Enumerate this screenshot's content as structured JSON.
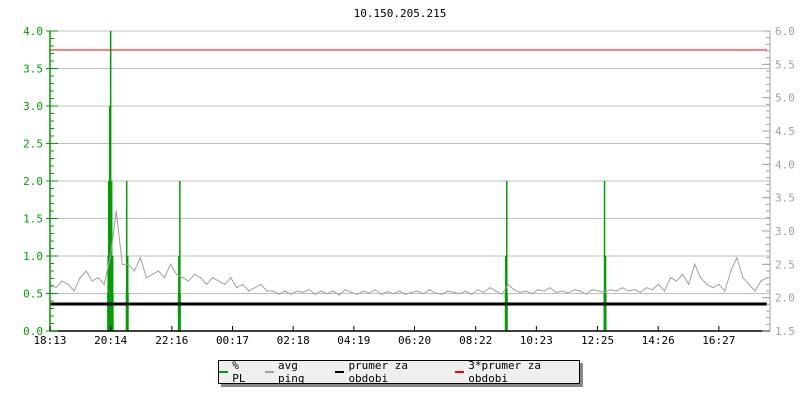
{
  "chart_data": {
    "type": "line",
    "title": "10.150.205.215",
    "x_tick_labels": [
      "18:13",
      "20:14",
      "22:16",
      "00:17",
      "02:18",
      "04:19",
      "06:20",
      "08:22",
      "10:23",
      "12:25",
      "14:26",
      "16:27"
    ],
    "x_range": [
      "18:13",
      "18:03"
    ],
    "y_left": {
      "ylim": [
        0.0,
        4.0
      ],
      "ticks": [
        "0.0",
        "0.5",
        "1.0",
        "1.5",
        "2.0",
        "2.5",
        "3.0",
        "3.5",
        "4.0"
      ],
      "color": "#00a000"
    },
    "y_right": {
      "ylim": [
        1.5,
        6.0
      ],
      "ticks": [
        "1.5",
        "2.0",
        "2.5",
        "3.0",
        "3.5",
        "4.0",
        "4.5",
        "5.0",
        "5.5",
        "6.0"
      ],
      "color": "#a0a0a0"
    },
    "grid": true,
    "legend_placement": "bottom",
    "series": [
      {
        "name": "% PL",
        "axis": "left",
        "color": "#00a000",
        "kind": "impulses",
        "points": [
          {
            "t": "20:09",
            "v": 1
          },
          {
            "t": "20:10",
            "v": 2
          },
          {
            "t": "20:12",
            "v": 3
          },
          {
            "t": "20:14",
            "v": 4
          },
          {
            "t": "20:16",
            "v": 2
          },
          {
            "t": "20:18",
            "v": 1
          },
          {
            "t": "20:46",
            "v": 2
          },
          {
            "t": "20:48",
            "v": 1
          },
          {
            "t": "22:30",
            "v": 1
          },
          {
            "t": "22:32",
            "v": 2
          },
          {
            "t": "09:22",
            "v": 1
          },
          {
            "t": "09:24",
            "v": 2
          },
          {
            "t": "12:39",
            "v": 2
          },
          {
            "t": "12:41",
            "v": 1
          }
        ]
      },
      {
        "name": "avg ping",
        "axis": "right",
        "color": "#a0a0a0",
        "kind": "line",
        "values": [
          2.2,
          2.15,
          2.25,
          2.2,
          2.1,
          2.3,
          2.4,
          2.25,
          2.3,
          2.2,
          2.6,
          3.3,
          2.5,
          2.5,
          2.4,
          2.6,
          2.3,
          2.35,
          2.4,
          2.3,
          2.5,
          2.35,
          2.3,
          2.25,
          2.35,
          2.3,
          2.2,
          2.3,
          2.25,
          2.2,
          2.3,
          2.15,
          2.2,
          2.1,
          2.15,
          2.2,
          2.1,
          2.1,
          2.05,
          2.1,
          2.05,
          2.1,
          2.08,
          2.12,
          2.05,
          2.1,
          2.06,
          2.1,
          2.04,
          2.12,
          2.08,
          2.05,
          2.1,
          2.07,
          2.12,
          2.05,
          2.09,
          2.06,
          2.1,
          2.05,
          2.08,
          2.1,
          2.06,
          2.12,
          2.07,
          2.05,
          2.1,
          2.08,
          2.06,
          2.1,
          2.05,
          2.12,
          2.08,
          2.15,
          2.1,
          2.05,
          2.2,
          2.12,
          2.08,
          2.1,
          2.06,
          2.12,
          2.1,
          2.15,
          2.08,
          2.1,
          2.07,
          2.12,
          2.1,
          2.05,
          2.12,
          2.1,
          2.08,
          2.12,
          2.1,
          2.15,
          2.1,
          2.12,
          2.08,
          2.15,
          2.12,
          2.2,
          2.1,
          2.3,
          2.25,
          2.35,
          2.2,
          2.5,
          2.3,
          2.2,
          2.15,
          2.2,
          2.1,
          2.4,
          2.6,
          2.3,
          2.2,
          2.1,
          2.25,
          2.3
        ]
      },
      {
        "name": "prumer za obdobi",
        "axis": "right",
        "color": "#000000",
        "kind": "hline",
        "value": 1.905
      },
      {
        "name": "3*prumer za obdobi",
        "axis": "right",
        "color": "#ff0000",
        "kind": "hline",
        "value": 5.715
      }
    ]
  }
}
